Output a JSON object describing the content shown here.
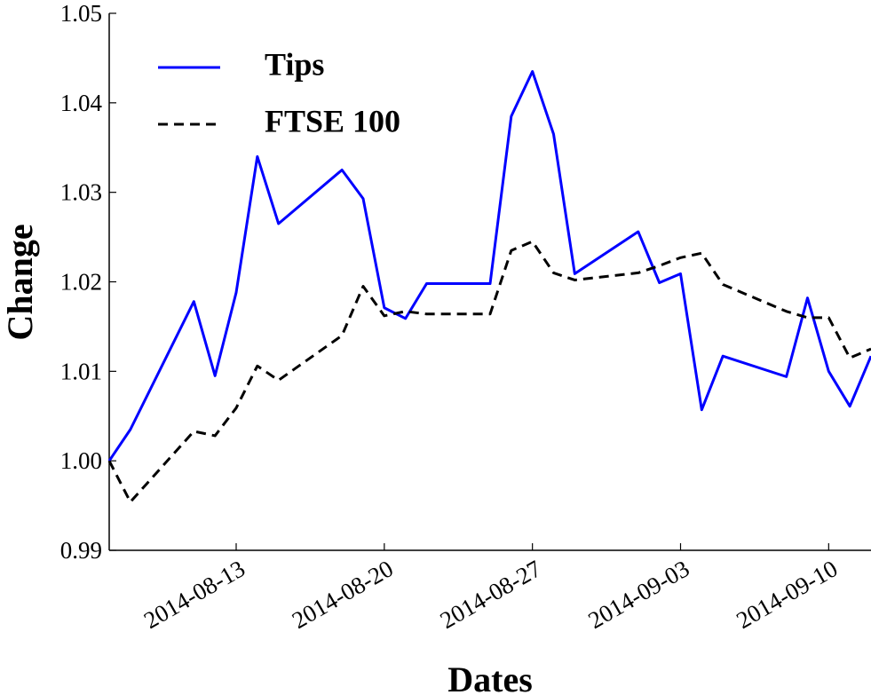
{
  "chart_data": {
    "type": "line",
    "x_label": "Dates",
    "y_label": "Change",
    "x": [
      "2014-08-07",
      "2014-08-08",
      "2014-08-11",
      "2014-08-12",
      "2014-08-13",
      "2014-08-14",
      "2014-08-15",
      "2014-08-18",
      "2014-08-19",
      "2014-08-20",
      "2014-08-21",
      "2014-08-22",
      "2014-08-25",
      "2014-08-26",
      "2014-08-27",
      "2014-08-28",
      "2014-08-29",
      "2014-09-01",
      "2014-09-02",
      "2014-09-03",
      "2014-09-04",
      "2014-09-05",
      "2014-09-08",
      "2014-09-09",
      "2014-09-10",
      "2014-09-11",
      "2014-09-12"
    ],
    "series": [
      {
        "name": "Tips",
        "color": "#0000ff",
        "dash": "solid",
        "values": [
          1.0,
          1.0035,
          1.0178,
          1.0095,
          1.0188,
          1.034,
          1.0265,
          1.0325,
          1.0293,
          1.0171,
          1.0159,
          1.0198,
          1.0198,
          1.0385,
          1.0435,
          1.0365,
          1.0209,
          1.0256,
          1.0199,
          1.0209,
          1.0057,
          1.0117,
          1.0094,
          1.0182,
          1.01,
          1.0061,
          1.0117
        ]
      },
      {
        "name": "FTSE 100",
        "color": "#000000",
        "dash": "dashed",
        "values": [
          1.0,
          0.9954,
          1.0033,
          1.0028,
          1.0059,
          1.0106,
          1.009,
          1.014,
          1.0195,
          1.0162,
          1.0167,
          1.0164,
          1.0164,
          1.0235,
          1.0245,
          1.021,
          1.0202,
          1.021,
          1.0218,
          1.0227,
          1.0232,
          1.0197,
          1.0167,
          1.016,
          1.016,
          1.0115,
          1.0125
        ]
      }
    ],
    "xlim": [
      "2014-08-07",
      "2014-09-12"
    ],
    "xticks": [
      "2014-08-13",
      "2014-08-20",
      "2014-08-27",
      "2014-09-03",
      "2014-09-10"
    ],
    "ylim": [
      0.99,
      1.05
    ],
    "yticks": [
      0.99,
      {
        "value": 1,
        "label": "1.00"
      },
      1.01,
      1.02,
      1.03,
      1.04,
      1.05
    ],
    "legend": "upper left",
    "grid": false
  }
}
